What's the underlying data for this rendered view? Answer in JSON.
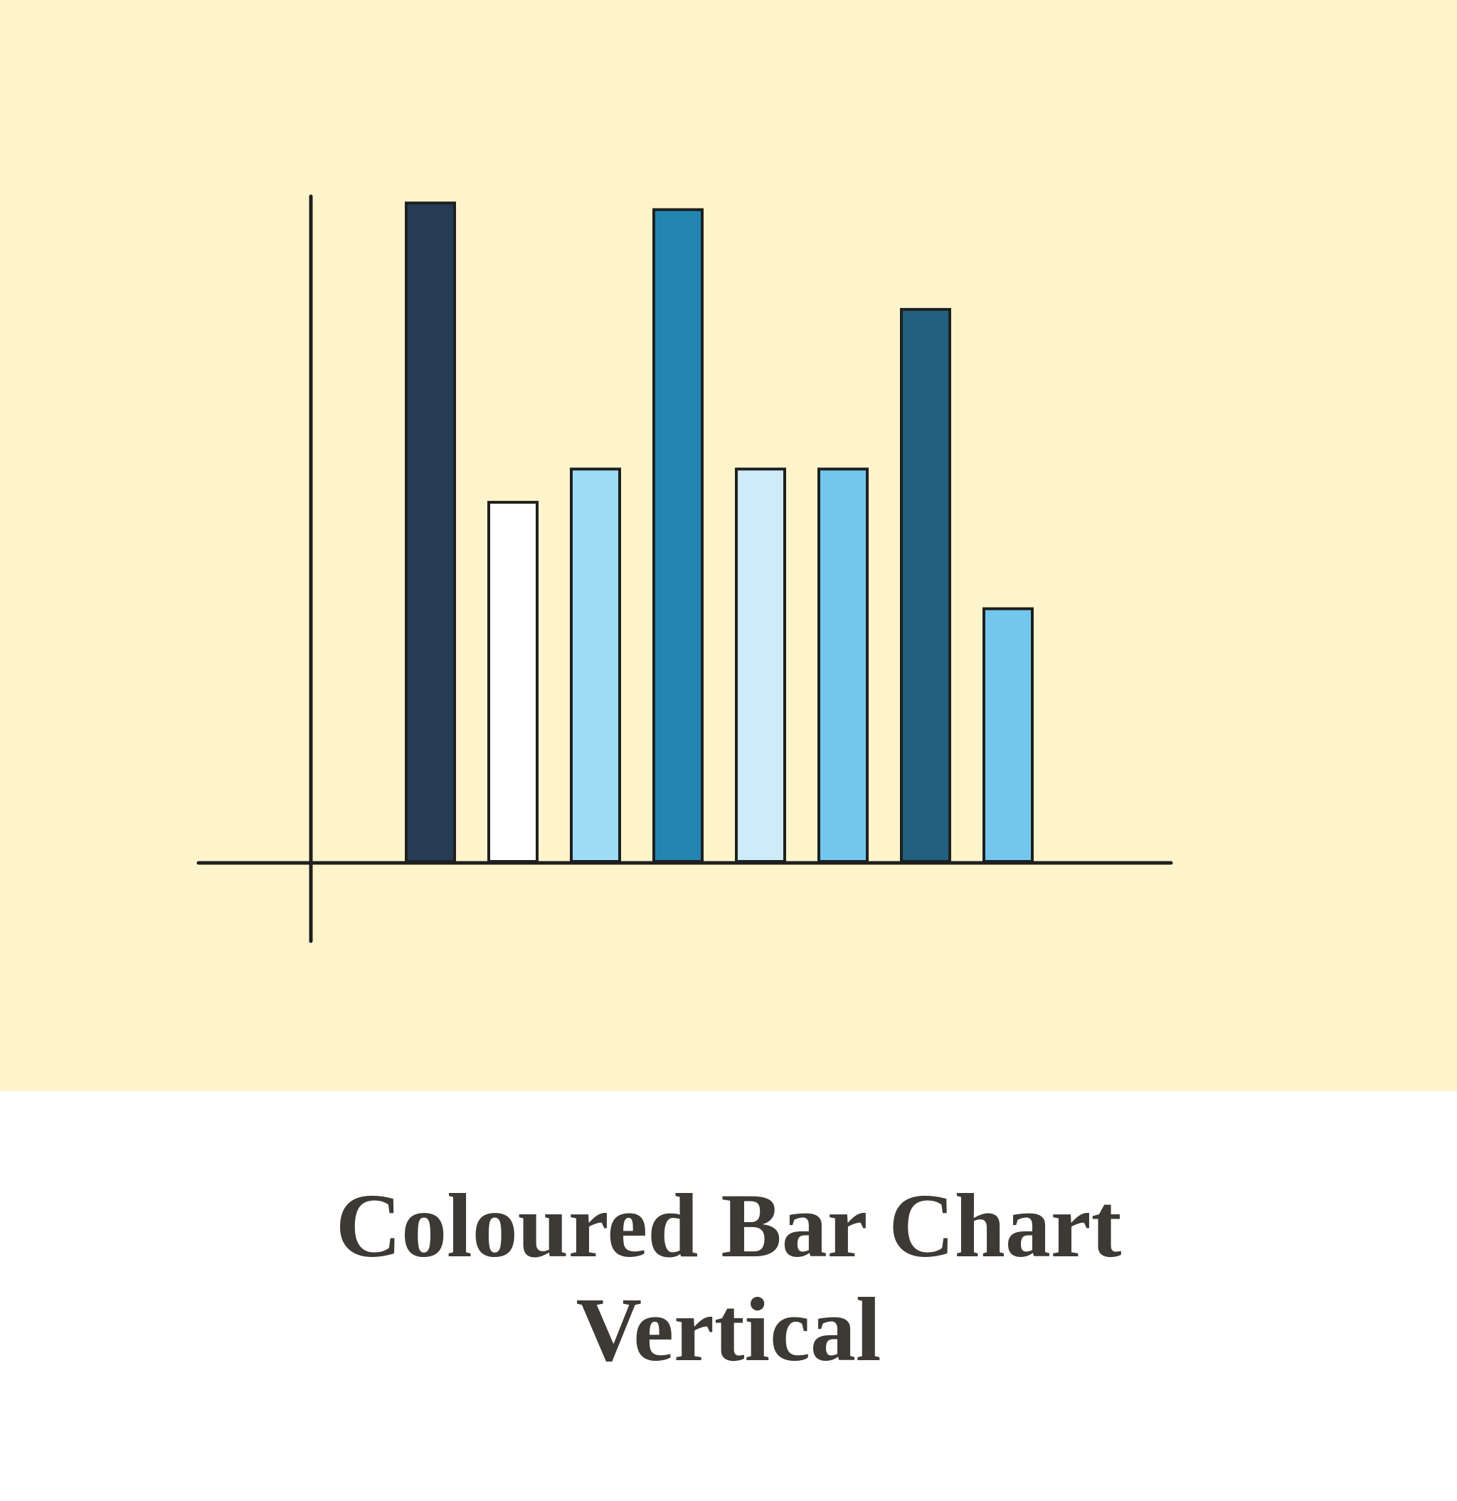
{
  "chart_data": {
    "type": "bar",
    "title": "Coloured Bar Chart Vertical",
    "values": [
      99,
      54,
      59,
      98,
      59,
      59,
      83,
      38
    ],
    "colors": [
      "#263b54",
      "#ffffff",
      "#9fdcf5",
      "#2285b1",
      "#cdebf8",
      "#74c7ec",
      "#235f80",
      "#74c7ec"
    ],
    "ylim": [
      0,
      100
    ]
  }
}
